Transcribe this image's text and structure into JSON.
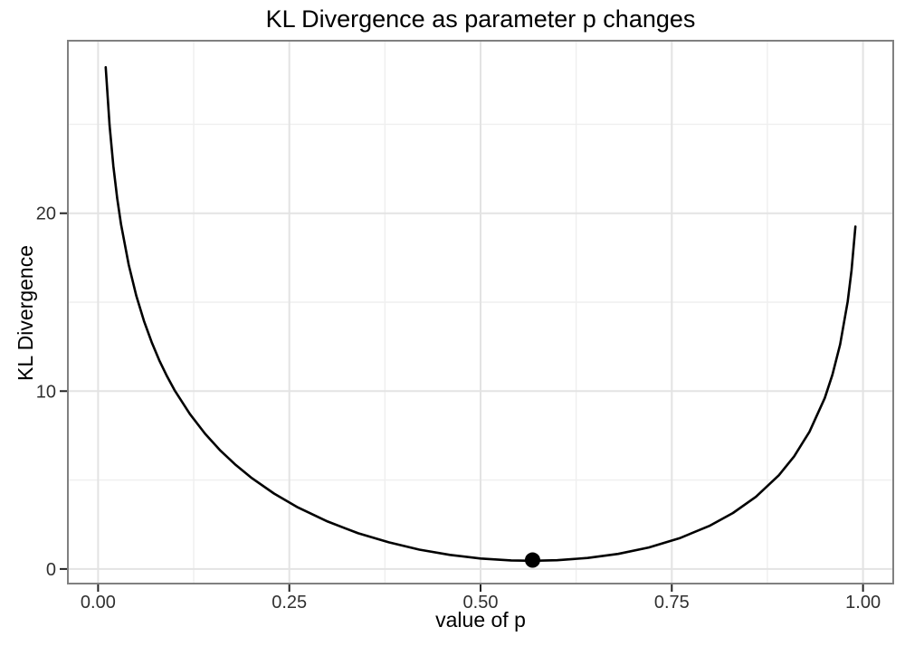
{
  "chart_data": {
    "type": "line",
    "title": "KL Divergence as parameter p changes",
    "xlabel": "value of p",
    "ylabel": "KL Divergence",
    "xlim": [
      -0.0395,
      1.0395
    ],
    "ylim": [
      -0.82,
      29.7
    ],
    "grid": "major and minor gridlines, light gray on white panel (ggplot theme_bw)",
    "legend": "none",
    "x_axis": {
      "ticks": [
        {
          "v": 0.0,
          "label": "0.00"
        },
        {
          "v": 0.25,
          "label": "0.25"
        },
        {
          "v": 0.5,
          "label": "0.50"
        },
        {
          "v": 0.75,
          "label": "0.75"
        },
        {
          "v": 1.0,
          "label": "1.00"
        }
      ],
      "minor_ticks": [
        0.125,
        0.375,
        0.625,
        0.875
      ]
    },
    "y_axis": {
      "ticks": [
        {
          "v": 0,
          "label": "0"
        },
        {
          "v": 10,
          "label": "10"
        },
        {
          "v": 20,
          "label": "20"
        }
      ],
      "minor_ticks": [
        5,
        15,
        25
      ]
    },
    "series": [
      {
        "name": "KL divergence curve",
        "type": "line",
        "color": "#000000",
        "points": [
          [
            0.01,
            28.21
          ],
          [
            0.015,
            24.93
          ],
          [
            0.02,
            22.63
          ],
          [
            0.025,
            20.84
          ],
          [
            0.03,
            19.39
          ],
          [
            0.04,
            17.11
          ],
          [
            0.05,
            15.36
          ],
          [
            0.06,
            13.94
          ],
          [
            0.07,
            12.75
          ],
          [
            0.08,
            11.73
          ],
          [
            0.09,
            10.84
          ],
          [
            0.1,
            10.05
          ],
          [
            0.12,
            8.71
          ],
          [
            0.14,
            7.6
          ],
          [
            0.16,
            6.65
          ],
          [
            0.18,
            5.85
          ],
          [
            0.2,
            5.14
          ],
          [
            0.23,
            4.24
          ],
          [
            0.26,
            3.49
          ],
          [
            0.3,
            2.67
          ],
          [
            0.34,
            2.01
          ],
          [
            0.38,
            1.5
          ],
          [
            0.42,
            1.09
          ],
          [
            0.46,
            0.79
          ],
          [
            0.5,
            0.59
          ],
          [
            0.54,
            0.48
          ],
          [
            0.568,
            0.46
          ],
          [
            0.6,
            0.49
          ],
          [
            0.64,
            0.62
          ],
          [
            0.68,
            0.85
          ],
          [
            0.72,
            1.21
          ],
          [
            0.76,
            1.73
          ],
          [
            0.8,
            2.44
          ],
          [
            0.83,
            3.15
          ],
          [
            0.86,
            4.06
          ],
          [
            0.89,
            5.27
          ],
          [
            0.91,
            6.33
          ],
          [
            0.93,
            7.71
          ],
          [
            0.95,
            9.62
          ],
          [
            0.96,
            10.92
          ],
          [
            0.97,
            12.62
          ],
          [
            0.98,
            15.04
          ],
          [
            0.985,
            16.78
          ],
          [
            0.99,
            19.25
          ]
        ]
      }
    ],
    "annotations": [
      {
        "type": "point-marker",
        "x": 0.568,
        "y": 0.5,
        "shape": "filled-circle",
        "color": "#000000",
        "meaning": "minimum of KL divergence curve"
      }
    ],
    "colors": {
      "curve": "#000000",
      "marker": "#000000",
      "grid_major": "#e3e3e3",
      "grid_minor": "#efefef",
      "panel_border": "#808080",
      "tick_mark": "#222222",
      "tick_label": "#303030",
      "title": "#000000",
      "background": "#ffffff",
      "panel_background": "#ffffff"
    }
  }
}
